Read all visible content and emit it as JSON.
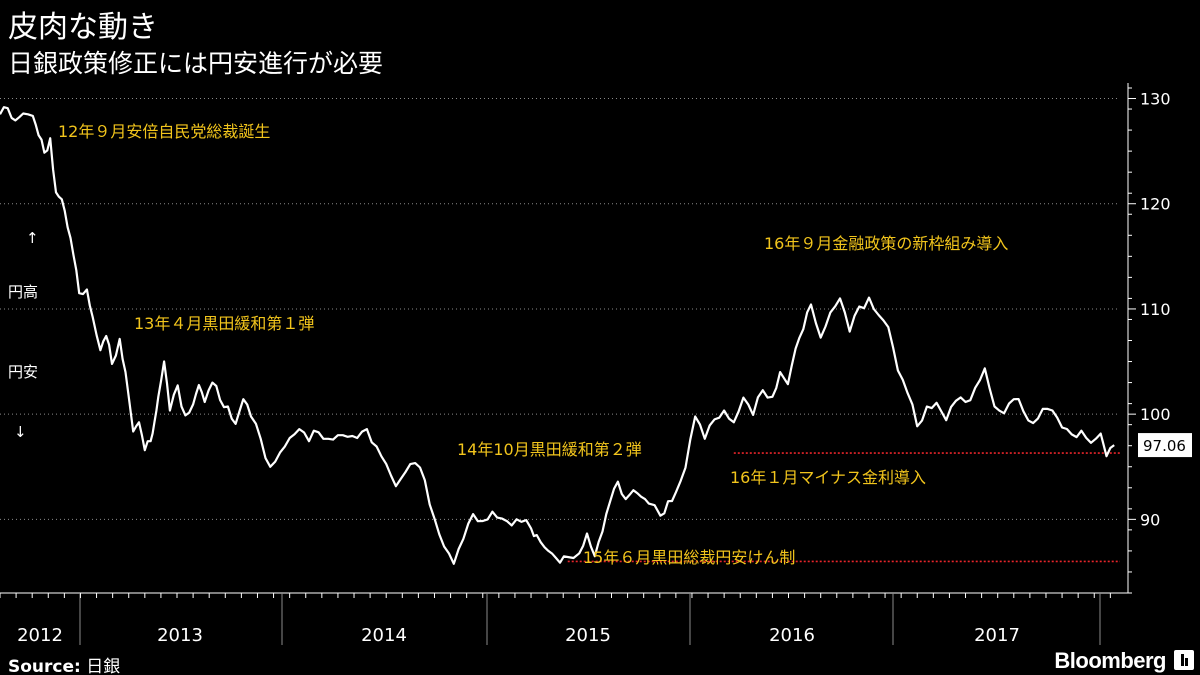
{
  "header": {
    "title": "皮肉な動き",
    "subtitle": "日銀政策修正には円安進行が必要"
  },
  "footer": {
    "source_label": "Source:",
    "source_value": "日銀",
    "brand": "Bloomberg"
  },
  "side_labels": {
    "up_arrow": "↑",
    "strong_yen": "円高",
    "weak_yen": "円安",
    "down_arrow": "↓"
  },
  "colors": {
    "background": "#000000",
    "line": "#ffffff",
    "annotation": "#f2c51c",
    "reference_line": "#e8252a",
    "grid": "#8a8a8a"
  },
  "chart_data": {
    "type": "line",
    "title": "皮肉な動き",
    "subtitle": "日銀政策修正には円安進行が必要",
    "y_axis_position": "right",
    "y_direction": "inverted",
    "ylim": [
      131,
      83
    ],
    "yticks": [
      130,
      120,
      110,
      100,
      90
    ],
    "xlim": [
      2012.0,
      2017.8
    ],
    "x_tick_labels": [
      {
        "label": "2012",
        "x": 2012.17
      },
      {
        "label": "2013",
        "x": 2013.0
      },
      {
        "label": "2014",
        "x": 2014.0
      },
      {
        "label": "2015",
        "x": 2015.0
      },
      {
        "label": "2016",
        "x": 2016.0
      },
      {
        "label": "2017",
        "x": 2017.0
      }
    ],
    "grid": true,
    "last_value": "97.06",
    "series": [
      {
        "x": [
          2012.0,
          2012.04,
          2012.08,
          2012.12,
          2012.17,
          2012.2,
          2012.23,
          2012.26,
          2012.29,
          2012.32,
          2012.35,
          2012.38,
          2012.41,
          2012.45,
          2012.48,
          2012.52,
          2012.55,
          2012.58,
          2012.62,
          2012.65,
          2012.69,
          2012.72,
          2012.75,
          2012.78,
          2012.8,
          2012.82,
          2012.85,
          2012.88,
          2012.92,
          2012.96,
          2013.0,
          2013.03,
          2013.06,
          2013.1,
          2013.14,
          2013.18,
          2013.22,
          2013.26,
          2013.3,
          2013.35,
          2013.4,
          2013.45,
          2013.5,
          2013.55,
          2013.6,
          2013.65,
          2013.7,
          2013.75,
          2013.8,
          2013.85,
          2013.9,
          2013.95,
          2014.0,
          2014.05,
          2014.1,
          2014.15,
          2014.2,
          2014.25,
          2014.3,
          2014.35,
          2014.4,
          2014.45,
          2014.5,
          2014.55,
          2014.6,
          2014.65,
          2014.7,
          2014.75,
          2014.78,
          2014.82,
          2014.86,
          2014.9,
          2014.94,
          2015.0,
          2015.04,
          2015.08,
          2015.12,
          2015.16,
          2015.2,
          2015.24,
          2015.28,
          2015.32,
          2015.36,
          2015.42,
          2015.46,
          2015.5,
          2015.55,
          2015.6,
          2015.65,
          2015.7,
          2015.75,
          2015.8,
          2015.85,
          2015.9,
          2015.95,
          2016.0,
          2016.04,
          2016.08,
          2016.12,
          2016.16,
          2016.2,
          2016.25,
          2016.3,
          2016.35,
          2016.4,
          2016.45,
          2016.5,
          2016.55,
          2016.6,
          2016.65,
          2016.7,
          2016.75,
          2016.8,
          2016.85,
          2016.9,
          2016.95,
          2017.0,
          2017.05,
          2017.1,
          2017.15,
          2017.2,
          2017.25,
          2017.3,
          2017.35,
          2017.4,
          2017.45,
          2017.5,
          2017.55,
          2017.6,
          2017.65,
          2017.7,
          2017.73,
          2017.77
        ],
        "y": [
          128.5,
          129.0,
          128.0,
          128.8,
          128.2,
          126.5,
          125.0,
          126.0,
          121.0,
          120.5,
          118.0,
          115.0,
          111.5,
          112.0,
          109.0,
          106.0,
          107.5,
          105.0,
          107.0,
          104.0,
          98.5,
          99.0,
          96.5,
          97.5,
          99.5,
          101.5,
          105.0,
          100.5,
          102.5,
          99.8,
          101.0,
          103.0,
          101.0,
          103.0,
          101.5,
          100.5,
          99.0,
          101.5,
          100.0,
          97.5,
          95.0,
          96.5,
          97.5,
          98.5,
          97.5,
          98.5,
          97.5,
          98.0,
          98.0,
          97.5,
          98.5,
          97.0,
          95.5,
          93.0,
          94.5,
          95.5,
          93.5,
          90.0,
          87.5,
          86.0,
          88.0,
          90.5,
          90.0,
          90.5,
          90.0,
          89.5,
          90.0,
          89.0,
          88.5,
          87.5,
          86.5,
          85.8,
          86.5,
          87.0,
          88.5,
          86.5,
          89.0,
          91.5,
          93.5,
          92.0,
          93.0,
          92.0,
          91.5,
          90.5,
          91.5,
          92.5,
          95.0,
          100.0,
          97.5,
          99.5,
          100.5,
          99.0,
          101.5,
          100.0,
          102.5,
          101.5,
          104.0,
          103.0,
          106.0,
          108.0,
          110.5,
          107.5,
          109.5,
          111.0,
          108.0,
          110.0,
          111.0,
          109.5,
          108.5,
          104.0,
          102.0,
          99.0,
          100.5,
          101.0,
          99.5,
          101.5,
          101.0,
          102.5,
          104.5,
          100.5,
          100.0,
          101.5,
          100.5,
          99.0,
          100.5,
          100.5,
          98.5,
          98.0,
          98.5,
          97.5,
          98.0,
          96.0,
          97.06
        ]
      }
    ],
    "reference_lines": [
      {
        "y": 96.3,
        "x_start": 2015.8
      },
      {
        "y": 86.0,
        "x_start": 2014.94
      }
    ],
    "annotations": [
      {
        "text": "12年９月安倍自民党総裁誕生",
        "x": 2012.74
      },
      {
        "text": "13年４月黒田緩和第１弾",
        "x": 2013.26
      },
      {
        "text": "14年10月黒田緩和第２弾",
        "x": 2014.82
      },
      {
        "text": "15年６月黒田総裁円安けん制",
        "x": 2015.45
      },
      {
        "text": "16年１月マイナス金利導入",
        "x": 2016.07
      },
      {
        "text": "16年９月金融政策の新枠組み導入",
        "x": 2016.71
      }
    ]
  }
}
